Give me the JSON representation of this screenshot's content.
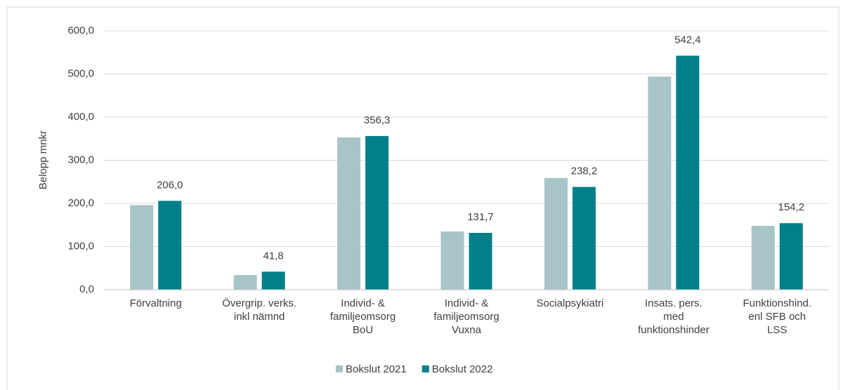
{
  "chart_data": {
    "type": "bar",
    "y_label": "Belopp mnkr",
    "categories": [
      "Förvaltning",
      "Övergrip. verks.\ninkl nämnd",
      "Individ- &\nfamiljeomsorg\nBoU",
      "Individ- &\nfamiljeomsorg\nVuxna",
      "Socialpsykiatri",
      "Insats. pers.\nmed\nfunktionshinder",
      "Funktionshind.\nenl SFB och\nLSS"
    ],
    "series": [
      {
        "name": "Bokslut 2021",
        "color": "#a7c4c8",
        "values": [
          196,
          34,
          353,
          135,
          259,
          494,
          148
        ]
      },
      {
        "name": "Bokslut 2022",
        "color": "#00808a",
        "values": [
          206.0,
          41.8,
          356.3,
          131.7,
          238.2,
          542.4,
          154.2
        ],
        "value_labels": [
          "206,0",
          "41,8",
          "356,3",
          "131,7",
          "238,2",
          "542,4",
          "154,2"
        ]
      }
    ],
    "ylim": [
      0,
      600
    ],
    "yticks": [
      {
        "value": 0,
        "label": "0,0"
      },
      {
        "value": 100,
        "label": "100,0"
      },
      {
        "value": 200,
        "label": "200,0"
      },
      {
        "value": 300,
        "label": "300,0"
      },
      {
        "value": 400,
        "label": "400,0"
      },
      {
        "value": 500,
        "label": "500,0"
      },
      {
        "value": 600,
        "label": "600,0"
      }
    ],
    "grid": true,
    "legend": "bottom"
  }
}
